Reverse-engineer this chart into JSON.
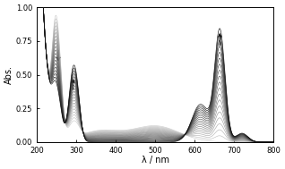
{
  "xlim": [
    200,
    800
  ],
  "ylim": [
    0,
    1.0
  ],
  "xlabel": "λ / nm",
  "ylabel": "Abs.",
  "yticks": [
    0,
    0.25,
    0.5,
    0.75,
    1
  ],
  "xticks": [
    200,
    300,
    400,
    500,
    600,
    700,
    800
  ],
  "n_scans": 20,
  "background_color": "#ffffff"
}
